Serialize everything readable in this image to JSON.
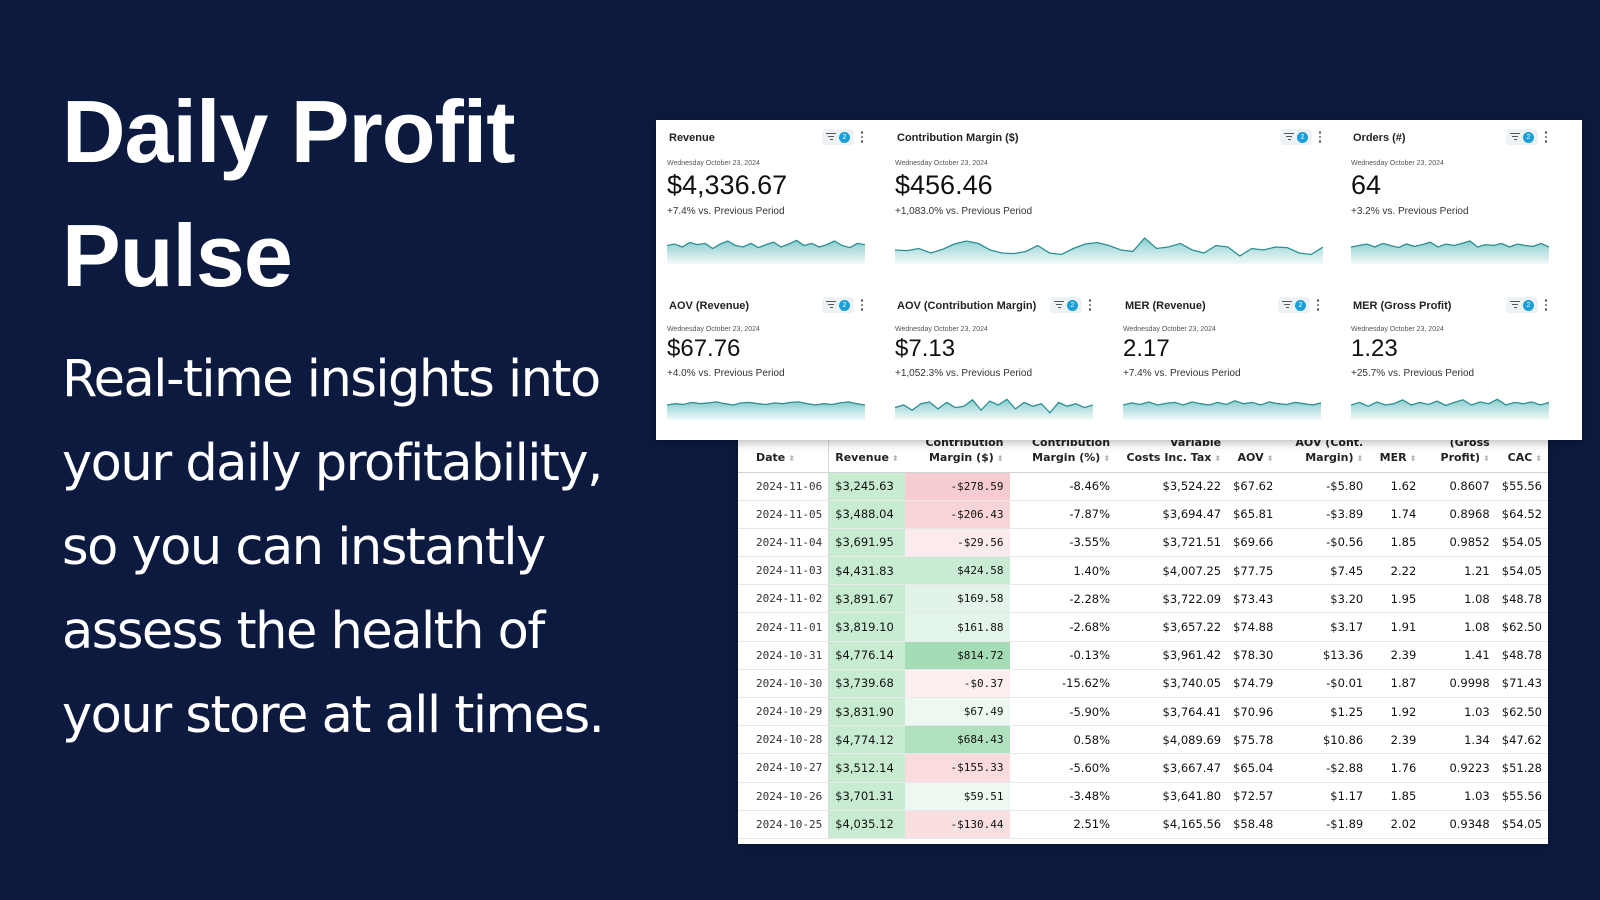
{
  "hero": {
    "title": "Daily Profit Pulse",
    "description": "Real-time insights into your daily profitability, so you can instantly assess the health of your store at all times."
  },
  "kpi_cards": [
    {
      "title": "Revenue",
      "filter_count": "2",
      "date": "Wednesday October 23, 2024",
      "value": "$4,336.67",
      "change": "+7.4% vs. Previous Period",
      "spark": [
        0.55,
        0.6,
        0.5,
        0.65,
        0.58,
        0.62,
        0.45,
        0.6,
        0.7,
        0.55,
        0.5,
        0.62,
        0.48,
        0.58,
        0.66,
        0.5,
        0.6,
        0.72,
        0.55,
        0.62,
        0.5,
        0.58,
        0.7,
        0.55,
        0.48,
        0.62,
        0.58
      ]
    },
    {
      "title": "Contribution Margin ($)",
      "filter_count": "2",
      "date": "Wednesday October 23, 2024",
      "value": "$456.46",
      "change": "+1,083.0% vs. Previous Period",
      "spark": [
        0.4,
        0.38,
        0.45,
        0.3,
        0.42,
        0.6,
        0.7,
        0.62,
        0.4,
        0.3,
        0.28,
        0.35,
        0.55,
        0.3,
        0.25,
        0.45,
        0.6,
        0.65,
        0.55,
        0.4,
        0.35,
        0.8,
        0.45,
        0.5,
        0.62,
        0.4,
        0.3,
        0.55,
        0.5,
        0.2,
        0.45,
        0.4,
        0.5,
        0.48,
        0.3,
        0.25,
        0.5
      ]
    },
    {
      "title": "Orders (#)",
      "filter_count": "2",
      "date": "Wednesday October 23, 2024",
      "value": "64",
      "change": "+3.2% vs. Previous Period",
      "spark": [
        0.5,
        0.55,
        0.6,
        0.5,
        0.62,
        0.55,
        0.48,
        0.6,
        0.52,
        0.58,
        0.66,
        0.5,
        0.6,
        0.55,
        0.62,
        0.7,
        0.5,
        0.58,
        0.55,
        0.62,
        0.5,
        0.6,
        0.55,
        0.52,
        0.62,
        0.5
      ]
    },
    {
      "title": "AOV (Revenue)",
      "filter_count": "2",
      "date": "Wednesday October 23, 2024",
      "value": "$67.76",
      "change": "+4.0% vs. Previous Period",
      "spark": [
        0.5,
        0.55,
        0.52,
        0.6,
        0.55,
        0.58,
        0.62,
        0.55,
        0.5,
        0.58,
        0.6,
        0.55,
        0.52,
        0.58,
        0.55,
        0.6,
        0.62,
        0.55,
        0.5,
        0.55,
        0.52,
        0.58,
        0.62,
        0.55,
        0.5
      ]
    },
    {
      "title": "AOV (Contribution Margin)",
      "filter_count": "2",
      "date": "Wednesday October 23, 2024",
      "value": "$7.13",
      "change": "+1,052.3% vs. Previous Period",
      "spark": [
        0.4,
        0.5,
        0.3,
        0.55,
        0.62,
        0.35,
        0.6,
        0.4,
        0.45,
        0.7,
        0.3,
        0.65,
        0.5,
        0.72,
        0.35,
        0.6,
        0.45,
        0.55,
        0.2,
        0.6,
        0.45,
        0.55,
        0.4,
        0.5
      ]
    },
    {
      "title": "MER (Revenue)",
      "filter_count": "2",
      "date": "Wednesday October 23, 2024",
      "value": "2.17",
      "change": "+7.4% vs. Previous Period",
      "spark": [
        0.5,
        0.58,
        0.52,
        0.62,
        0.5,
        0.56,
        0.6,
        0.5,
        0.62,
        0.55,
        0.5,
        0.6,
        0.52,
        0.66,
        0.55,
        0.6,
        0.5,
        0.62,
        0.55,
        0.52,
        0.6,
        0.55,
        0.5,
        0.58
      ]
    },
    {
      "title": "MER (Gross Profit)",
      "filter_count": "2",
      "date": "Wednesday October 23, 2024",
      "value": "1.23",
      "change": "+25.7% vs. Previous Period",
      "spark": [
        0.5,
        0.6,
        0.45,
        0.62,
        0.5,
        0.55,
        0.7,
        0.5,
        0.6,
        0.52,
        0.65,
        0.48,
        0.6,
        0.7,
        0.5,
        0.62,
        0.55,
        0.72,
        0.5,
        0.6,
        0.55,
        0.62,
        0.5,
        0.6
      ]
    }
  ],
  "table": {
    "headers": [
      [
        "Date"
      ],
      [
        "Revenue"
      ],
      [
        "Contribution",
        "Margin ($)"
      ],
      [
        "Contribution",
        "Margin (%)"
      ],
      [
        "Variable",
        "Costs Inc. Tax"
      ],
      [
        "AOV"
      ],
      [
        "AOV (Cont.",
        "Margin)"
      ],
      [
        "MER"
      ],
      [
        "(Gross",
        "Profit)"
      ],
      [
        "CAC"
      ]
    ],
    "rows": [
      [
        "2024-11-06",
        "$3,245.63",
        "-$278.59",
        "-8.46%",
        "$3,524.22",
        "$67.62",
        "-$5.80",
        "1.62",
        "0.8607",
        "$55.56"
      ],
      [
        "2024-11-05",
        "$3,488.04",
        "-$206.43",
        "-7.87%",
        "$3,694.47",
        "$65.81",
        "-$3.89",
        "1.74",
        "0.8968",
        "$64.52"
      ],
      [
        "2024-11-04",
        "$3,691.95",
        "-$29.56",
        "-3.55%",
        "$3,721.51",
        "$69.66",
        "-$0.56",
        "1.85",
        "0.9852",
        "$54.05"
      ],
      [
        "2024-11-03",
        "$4,431.83",
        "$424.58",
        "1.40%",
        "$4,007.25",
        "$77.75",
        "$7.45",
        "2.22",
        "1.21",
        "$54.05"
      ],
      [
        "2024-11-02",
        "$3,891.67",
        "$169.58",
        "-2.28%",
        "$3,722.09",
        "$73.43",
        "$3.20",
        "1.95",
        "1.08",
        "$48.78"
      ],
      [
        "2024-11-01",
        "$3,819.10",
        "$161.88",
        "-2.68%",
        "$3,657.22",
        "$74.88",
        "$3.17",
        "1.91",
        "1.08",
        "$62.50"
      ],
      [
        "2024-10-31",
        "$4,776.14",
        "$814.72",
        "-0.13%",
        "$3,961.42",
        "$78.30",
        "$13.36",
        "2.39",
        "1.41",
        "$48.78"
      ],
      [
        "2024-10-30",
        "$3,739.68",
        "-$0.37",
        "-15.62%",
        "$3,740.05",
        "$74.79",
        "-$0.01",
        "1.87",
        "0.9998",
        "$71.43"
      ],
      [
        "2024-10-29",
        "$3,831.90",
        "$67.49",
        "-5.90%",
        "$3,764.41",
        "$70.96",
        "$1.25",
        "1.92",
        "1.03",
        "$62.50"
      ],
      [
        "2024-10-28",
        "$4,774.12",
        "$684.43",
        "0.58%",
        "$4,089.69",
        "$75.78",
        "$10.86",
        "2.39",
        "1.34",
        "$47.62"
      ],
      [
        "2024-10-27",
        "$3,512.14",
        "-$155.33",
        "-5.60%",
        "$3,667.47",
        "$65.04",
        "-$2.88",
        "1.76",
        "0.9223",
        "$51.28"
      ],
      [
        "2024-10-26",
        "$3,701.31",
        "$59.51",
        "-3.48%",
        "$3,641.80",
        "$72.57",
        "$1.17",
        "1.85",
        "1.03",
        "$55.56"
      ],
      [
        "2024-10-25",
        "$4,035.12",
        "-$130.44",
        "2.51%",
        "$4,165.56",
        "$58.48",
        "-$1.89",
        "2.02",
        "0.9348",
        "$54.05"
      ]
    ]
  },
  "colors": {
    "background": "#0c1a40",
    "spark_line": "#2b8f94",
    "spark_fill": "#7fc8c9",
    "badge": "#1a9fd8",
    "revenue_cell": "#c8ecd2",
    "positive": "#bfe6cb",
    "negative": "#f2a2a8"
  }
}
